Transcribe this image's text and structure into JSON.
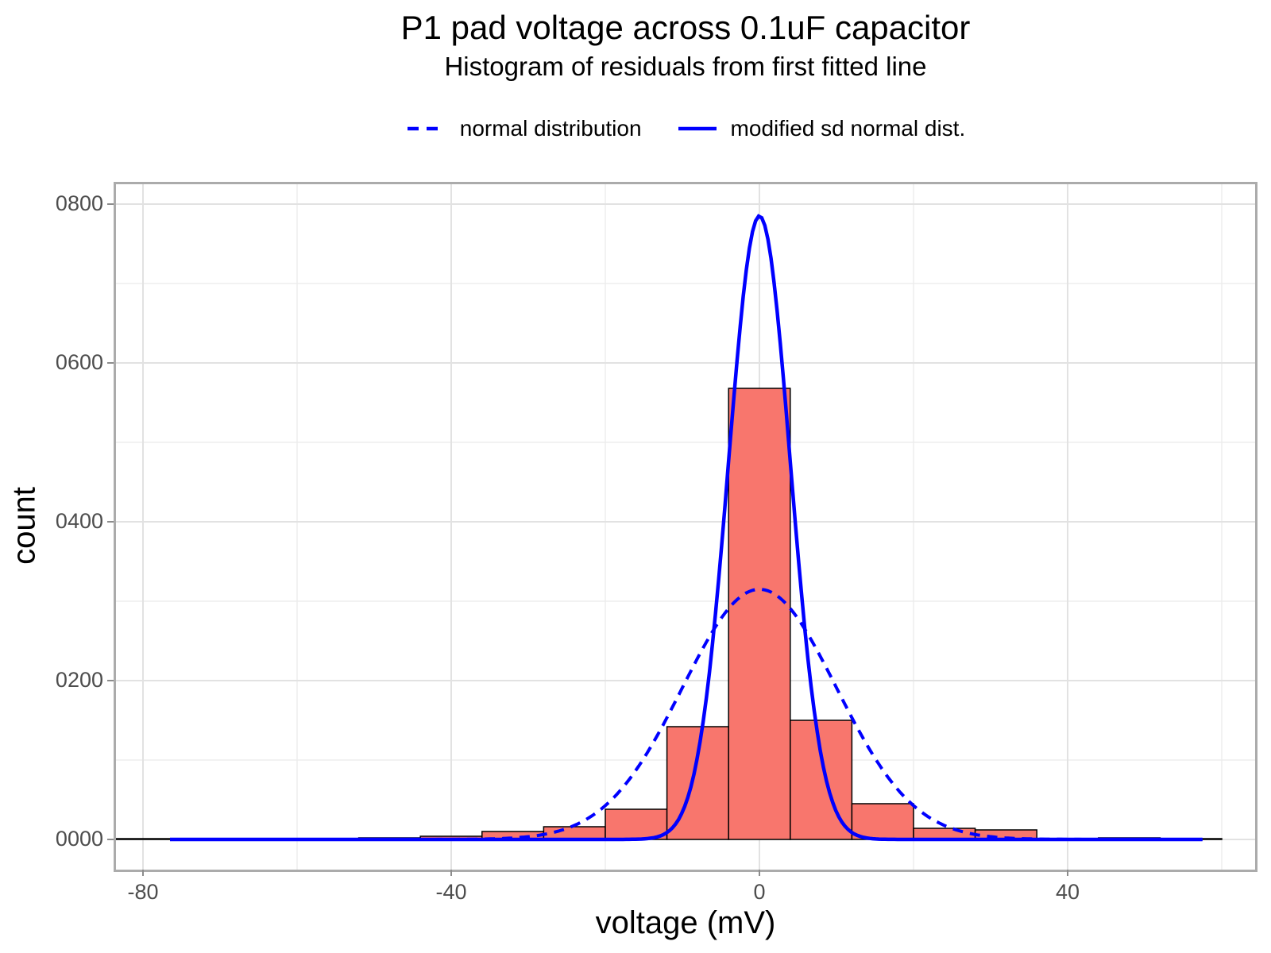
{
  "header": {
    "title": "P1 pad voltage across 0.1uF capacitor",
    "subtitle": "Histogram of residuals from first fitted line"
  },
  "legend": {
    "entries": [
      {
        "label": "normal distribution",
        "linetype": "dashed",
        "color": "#0000FF"
      },
      {
        "label": "modified sd normal dist.",
        "linetype": "solid",
        "color": "#0000FF"
      }
    ]
  },
  "chart_data": {
    "type": "bar",
    "subtype": "histogram-with-fitted-curves",
    "title": "P1 pad voltage across 0.1uF capacitor",
    "subtitle": "Histogram of residuals from first fitted line",
    "xlabel": "voltage (mV)",
    "ylabel": "count",
    "x_axis": {
      "range_mV": [
        -83.2,
        64.3
      ],
      "ticks": [
        {
          "value": -80,
          "label": "-80"
        },
        {
          "value": -40,
          "label": "-40"
        },
        {
          "value": 0,
          "label": "0"
        },
        {
          "value": 40,
          "label": "40"
        }
      ],
      "minor_ticks": [
        -60,
        -20,
        20,
        60
      ]
    },
    "y_axis": {
      "range_count": [
        -38,
        825
      ],
      "ticks": [
        {
          "value": 0,
          "label": "0000"
        },
        {
          "value": 200,
          "label": "0200"
        },
        {
          "value": 400,
          "label": "0400"
        },
        {
          "value": 600,
          "label": "0600"
        },
        {
          "value": 800,
          "label": "0800"
        }
      ],
      "minor_ticks": [
        100,
        300,
        500,
        700
      ]
    },
    "histogram": {
      "bin_width_mV": 8,
      "bins": [
        {
          "center": -80,
          "count": 1
        },
        {
          "center": -48,
          "count": 2
        },
        {
          "center": -40,
          "count": 4
        },
        {
          "center": -32,
          "count": 10
        },
        {
          "center": -24,
          "count": 16
        },
        {
          "center": -16,
          "count": 38
        },
        {
          "center": -8,
          "count": 142
        },
        {
          "center": 0,
          "count": 568
        },
        {
          "center": 8,
          "count": 150
        },
        {
          "center": 16,
          "count": 45
        },
        {
          "center": 24,
          "count": 14
        },
        {
          "center": 32,
          "count": 12
        },
        {
          "center": 48,
          "count": 2
        },
        {
          "center": 56,
          "count": 1
        }
      ]
    },
    "curves": [
      {
        "name": "normal distribution",
        "style": "dashed",
        "color": "#0000FF",
        "mean_mV": 0,
        "sd_mV": 10,
        "peak_count": 315,
        "x_range_mV": [
          -76.5,
          57.5
        ]
      },
      {
        "name": "modified sd normal dist.",
        "style": "solid",
        "color": "#0000FF",
        "mean_mV": 0,
        "sd_mV": 4,
        "peak_count": 785,
        "x_range_mV": [
          -76.5,
          57.5
        ]
      }
    ],
    "grid": {
      "major": true,
      "minor": true
    },
    "legend_position": "top-center"
  },
  "colors": {
    "bar_fill": "#F8766D",
    "bar_stroke": "#000000",
    "curve_blue": "#0000FF",
    "grid_major": "#E2E2E2",
    "grid_minor": "#EDEDED",
    "panel_border": "#ABABAB",
    "tick_mark": "#8C8C8C",
    "tick_label": "#4D4D4D",
    "text": "#000000",
    "background": "#FFFFFF"
  }
}
